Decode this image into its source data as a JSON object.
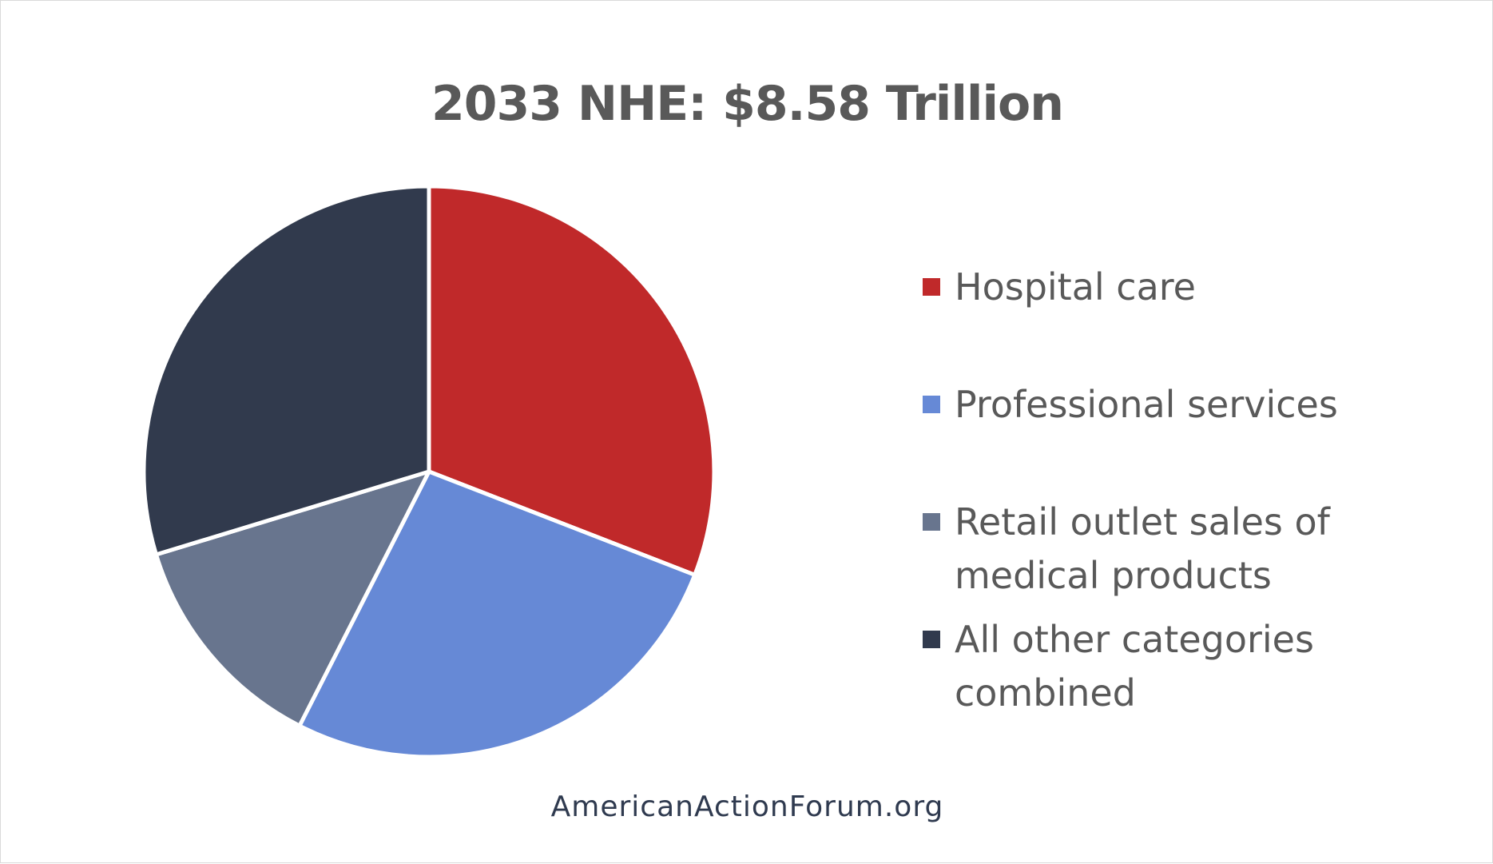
{
  "chart_data": {
    "type": "pie",
    "title": "2033 NHE: $8.58 Trillion",
    "slices": [
      {
        "label": "Hospital care",
        "value": 30.9,
        "color": "#c0292a"
      },
      {
        "label": "Professional services",
        "value": 26.6,
        "color": "#6689d6"
      },
      {
        "label": "Retail outlet sales of medical products",
        "value": 12.8,
        "color": "#68758e"
      },
      {
        "label": "All other categories combined",
        "value": 29.7,
        "color": "#313a4d"
      }
    ],
    "legend_position": "right"
  },
  "source": "AmericanActionForum.org"
}
